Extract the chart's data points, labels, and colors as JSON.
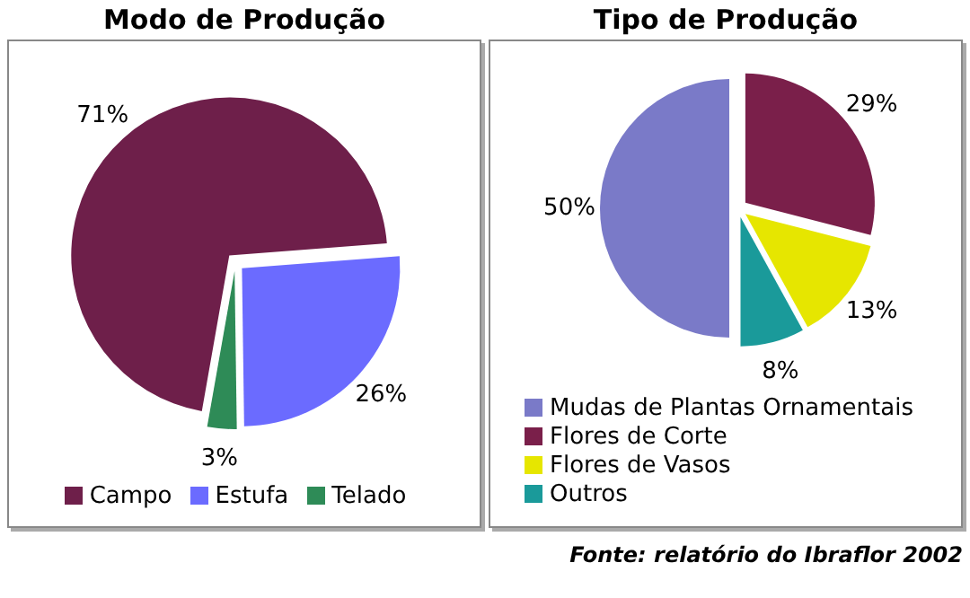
{
  "chart_data": [
    {
      "type": "pie",
      "title": "Modo de Produção",
      "categories": [
        "Campo",
        "Estufa",
        "Telado"
      ],
      "values": [
        71,
        26,
        3
      ],
      "colors": [
        "#6e1f4a",
        "#6b6bff",
        "#2e8b57"
      ],
      "value_labels": [
        "71%",
        "26%",
        "3%"
      ],
      "legend": "bottom"
    },
    {
      "type": "pie",
      "title": "Tipo de Produção",
      "categories": [
        "Mudas de Plantas Ornamentais",
        "Flores de Corte",
        "Flores de Vasos",
        "Outros"
      ],
      "values": [
        50,
        29,
        13,
        8
      ],
      "colors": [
        "#7a7ac8",
        "#7a1f4a",
        "#e6e600",
        "#1a9a9a"
      ],
      "value_labels": [
        "50%",
        "29%",
        "13%",
        "8%"
      ],
      "legend": "bottom",
      "annotations": [
        "Fonte: relatório do Ibraflor 2002"
      ]
    }
  ]
}
